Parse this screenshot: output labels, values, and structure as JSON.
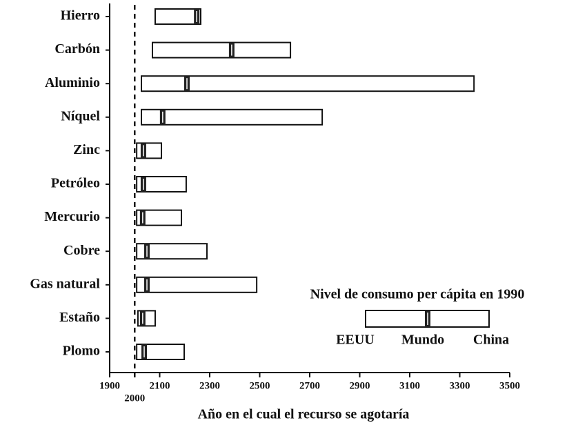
{
  "chart_data": {
    "type": "range_bar",
    "xlabel": "Año en el cual el recurso se agotaría",
    "categories": [
      "Hierro",
      "Carbón",
      "Aluminio",
      "Níquel",
      "Zinc",
      "Petróleo",
      "Mercurio",
      "Cobre",
      "Gas natural",
      "Estaño",
      "Plomo"
    ],
    "series": [
      {
        "name": "EEUU",
        "values": [
          2082,
          2071,
          2027,
          2027,
          2008,
          2008,
          2008,
          2008,
          2008,
          2013,
          2008
        ]
      },
      {
        "name": "Mundo",
        "values": [
          2248,
          2388,
          2209,
          2112,
          2035,
          2035,
          2032,
          2049,
          2049,
          2032,
          2038
        ]
      },
      {
        "name": "China",
        "values": [
          2264,
          2623,
          3357,
          2750,
          2107,
          2206,
          2187,
          2289,
          2488,
          2082,
          2198
        ]
      }
    ],
    "xlim": [
      1900,
      3500
    ],
    "xticks": [
      1900,
      2100,
      2300,
      2500,
      2700,
      2900,
      3100,
      3300,
      3500
    ],
    "reference_line": 2000,
    "legend_title": "Nivel de consumo per cápita en 1990"
  }
}
